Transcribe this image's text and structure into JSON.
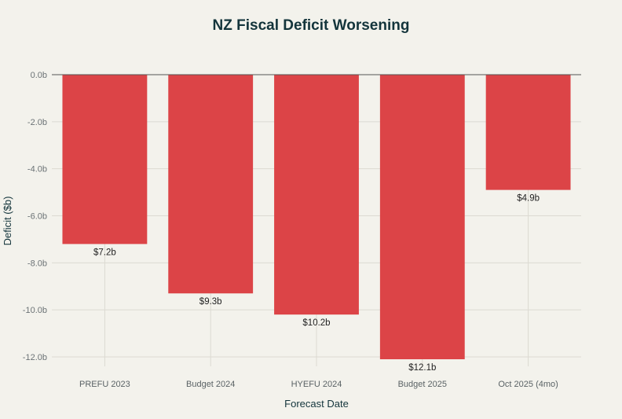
{
  "chart_data": {
    "type": "bar",
    "title": "NZ Fiscal Deficit Worsening",
    "xlabel": "Forecast Date",
    "ylabel": "Deficit ($b)",
    "categories": [
      "PREFU 2023",
      "Budget 2024",
      "HYEFU 2024",
      "Budget 2025",
      "Oct 2025 (4mo)"
    ],
    "values": [
      -7.2,
      -9.3,
      -10.2,
      -12.1,
      -4.9
    ],
    "data_labels": [
      "$7.2b",
      "$9.3b",
      "$10.2b",
      "$12.1b",
      "$4.9b"
    ],
    "yticks": [
      0,
      -2,
      -4,
      -6,
      -8,
      -10,
      -12
    ],
    "ytick_labels": [
      "0.0b",
      "-2.0b",
      "-4.0b",
      "-6.0b",
      "-8.0b",
      "-10.0b",
      "-12.0b"
    ],
    "ylim": [
      -12.4,
      0
    ],
    "grid": true,
    "colors": {
      "bar": "#dc4447",
      "background": "#f3f2ec",
      "title": "#13343b",
      "grid": "#dcdad2",
      "text": "#2b3a3f"
    }
  }
}
